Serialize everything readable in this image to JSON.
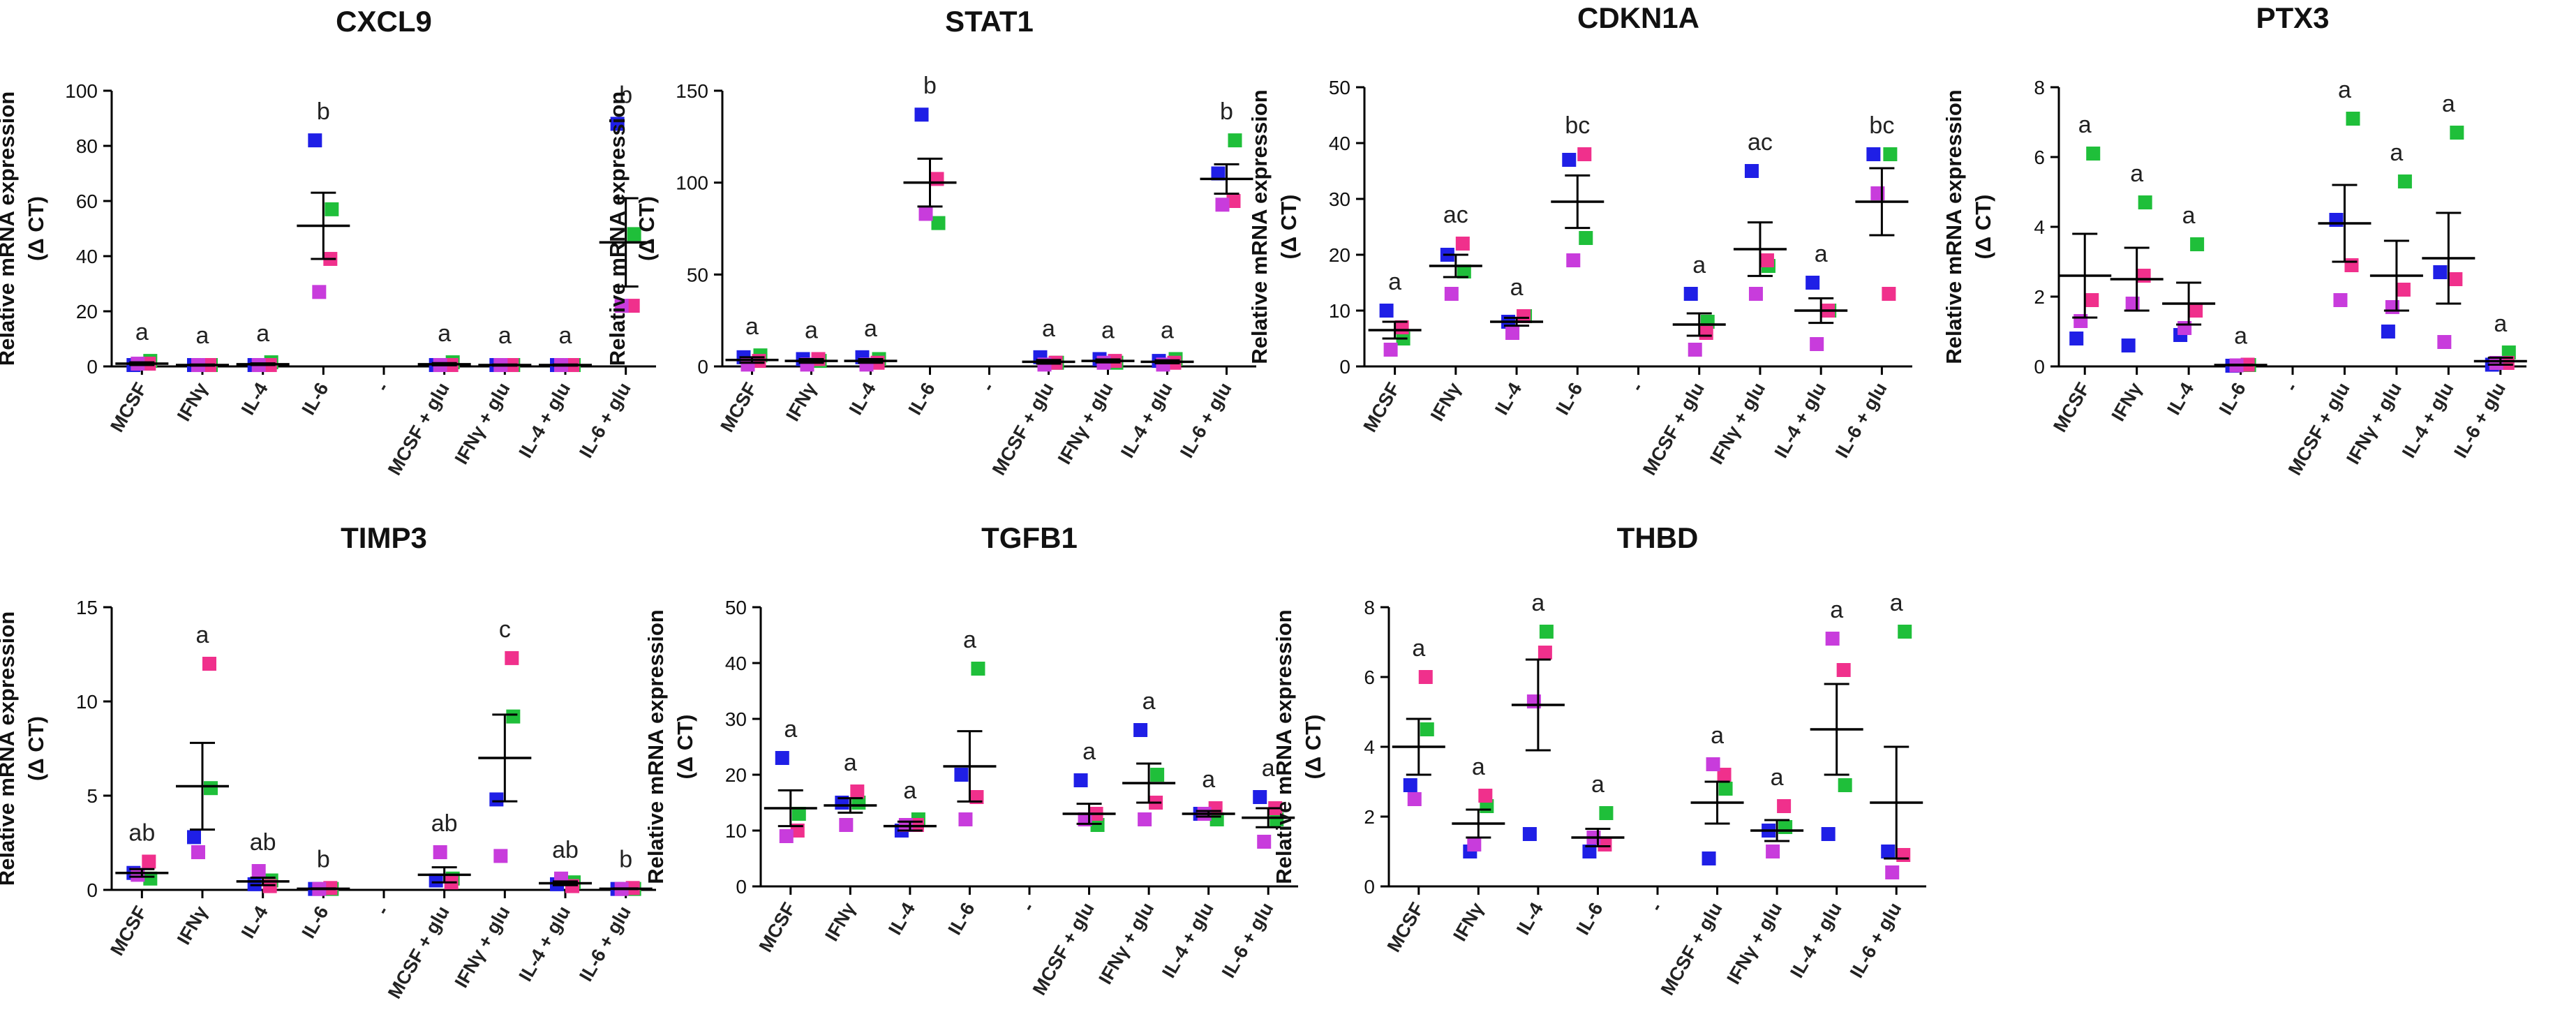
{
  "figure": {
    "colors": {
      "blue": "#1f1fe6",
      "green": "#1fbf3a",
      "pink": "#f0308c",
      "magenta": "#c83cdc",
      "axis": "#000000"
    },
    "ylabel": "Relative mRNA expression",
    "ylabel_sub": "(Δ CT)",
    "series_names": [
      "blue",
      "green",
      "pink",
      "magenta"
    ]
  },
  "chart_data": [
    {
      "type": "scatter",
      "title": "CXCL9",
      "categories": [
        "MCSF",
        "IFNγ",
        "IL-4",
        "IL-6",
        "-",
        "MCSF + glu",
        "IFNγ + glu",
        "IL-4 + glu",
        "IL-6 + glu"
      ],
      "ylim": [
        0,
        100
      ],
      "yticks": [
        0,
        20,
        40,
        60,
        80,
        100
      ],
      "points": [
        [
          0.5,
          2,
          1,
          1
        ],
        [
          0.5,
          0.5,
          0.5,
          0.5
        ],
        [
          0.5,
          1.5,
          0.5,
          0.5
        ],
        [
          82,
          57,
          39,
          27
        ],
        null,
        [
          0.5,
          1.5,
          0.5,
          0.5
        ],
        [
          0.5,
          0.5,
          0.5,
          0.5
        ],
        [
          0.5,
          0.5,
          0.5,
          0.5
        ],
        [
          88,
          48,
          22,
          22
        ]
      ],
      "mean": [
        1,
        0.5,
        0.8,
        51,
        null,
        0.8,
        0.5,
        0.5,
        45
      ],
      "sem": [
        0.5,
        0.2,
        0.3,
        12,
        null,
        0.4,
        0.2,
        0.2,
        16
      ],
      "letters": [
        "a",
        "a",
        "a",
        "b",
        "",
        "a",
        "a",
        "a",
        "b"
      ]
    },
    {
      "type": "scatter",
      "title": "STAT1",
      "categories": [
        "MCSF",
        "IFNγ",
        "IL-4",
        "IL-6",
        "-",
        "MCSF + glu",
        "IFNγ + glu",
        "IL-4 + glu",
        "IL-6 + glu"
      ],
      "ylim": [
        0,
        150
      ],
      "yticks": [
        0,
        50,
        100,
        150
      ],
      "points": [
        [
          5,
          6,
          3,
          1
        ],
        [
          4,
          3,
          4,
          1
        ],
        [
          5,
          4,
          2,
          1
        ],
        [
          137,
          78,
          102,
          83
        ],
        null,
        [
          5,
          2,
          2,
          1
        ],
        [
          4,
          2,
          3,
          2
        ],
        [
          3,
          4,
          2,
          1
        ],
        [
          105,
          123,
          90,
          88
        ]
      ],
      "mean": [
        3.5,
        3,
        3,
        100,
        null,
        2.5,
        3,
        2.5,
        102
      ],
      "sem": [
        1.5,
        1,
        1,
        13,
        null,
        1,
        0.8,
        0.8,
        8
      ],
      "letters": [
        "a",
        "a",
        "a",
        "b",
        "",
        "a",
        "a",
        "a",
        "b"
      ]
    },
    {
      "type": "scatter",
      "title": "CDKN1A",
      "categories": [
        "MCSF",
        "IFNγ",
        "IL-4",
        "IL-6",
        "-",
        "MCSF + glu",
        "IFNγ + glu",
        "IL-4 + glu",
        "IL-6 + glu"
      ],
      "ylim": [
        0,
        50
      ],
      "yticks": [
        0,
        10,
        20,
        30,
        40,
        50
      ],
      "points": [
        [
          10,
          5,
          7,
          3
        ],
        [
          20,
          17,
          22,
          13
        ],
        [
          8,
          9,
          9,
          6
        ],
        [
          37,
          23,
          38,
          19
        ],
        null,
        [
          13,
          8,
          6,
          3
        ],
        [
          35,
          18,
          19,
          13
        ],
        [
          15,
          10,
          10,
          4
        ],
        [
          38,
          38,
          13,
          31
        ]
      ],
      "mean": [
        6.5,
        null,
        8,
        29.5,
        null,
        7.5,
        21,
        10,
        29.5
      ],
      "sem": [
        1.5,
        2,
        0.7,
        4.7,
        null,
        2,
        4.8,
        2.2,
        6
      ],
      "mean_fix": [
        6.5,
        18,
        8,
        29.5,
        null,
        7.5,
        21,
        10,
        29.5
      ],
      "letters": [
        "a",
        "ac",
        "a",
        "bc",
        "",
        "a",
        "ac",
        "a",
        "bc"
      ]
    },
    {
      "type": "scatter",
      "title": "PTX3",
      "categories": [
        "MCSF",
        "IFNγ",
        "IL-4",
        "IL-6",
        "-",
        "MCSF + glu",
        "IFNγ + glu",
        "IL-4 + glu",
        "IL-6 + glu"
      ],
      "ylim": [
        0,
        8
      ],
      "yticks": [
        0,
        2,
        4,
        6,
        8
      ],
      "points": [
        [
          0.8,
          6.1,
          1.9,
          1.3
        ],
        [
          0.6,
          4.7,
          2.6,
          1.8
        ],
        [
          0.9,
          3.5,
          1.6,
          1.1
        ],
        [
          0.02,
          0.04,
          0.05,
          0.03
        ],
        null,
        [
          4.2,
          7.1,
          2.9,
          1.9
        ],
        [
          1.0,
          5.3,
          2.2,
          1.7
        ],
        [
          2.7,
          6.7,
          2.5,
          0.7
        ],
        [
          0.05,
          0.4,
          0.1,
          0.1
        ]
      ],
      "mean": [
        2.6,
        2.5,
        1.8,
        0.04,
        null,
        4.1,
        2.6,
        3.1,
        0.15
      ],
      "sem": [
        1.2,
        0.9,
        0.6,
        0.01,
        null,
        1.1,
        1.0,
        1.3,
        0.1
      ],
      "letters": [
        "a",
        "a",
        "a",
        "a",
        "",
        "a",
        "a",
        "a",
        "a"
      ]
    },
    {
      "type": "scatter",
      "title": "TIMP3",
      "categories": [
        "MCSF",
        "IFNγ",
        "IL-4",
        "IL-6",
        "-",
        "MCSF + glu",
        "IFNγ + glu",
        "IL-4 + glu",
        "IL-6 + glu"
      ],
      "ylim": [
        0,
        15
      ],
      "yticks": [
        0,
        5,
        10,
        15
      ],
      "points": [
        [
          0.9,
          0.6,
          1.5,
          0.8
        ],
        [
          2.8,
          5.4,
          12.0,
          2.0
        ],
        [
          0.3,
          0.5,
          0.2,
          1.0
        ],
        [
          0.05,
          0.05,
          0.1,
          0.05
        ],
        null,
        [
          0.5,
          0.6,
          0.4,
          2.0
        ],
        [
          4.8,
          9.2,
          12.3,
          1.8
        ],
        [
          0.3,
          0.4,
          0.2,
          0.6
        ],
        [
          0.05,
          0.05,
          0.1,
          0.05
        ]
      ],
      "mean": [
        0.9,
        5.5,
        0.45,
        0.06,
        null,
        0.8,
        7.0,
        0.35,
        0.06
      ],
      "sem": [
        0.2,
        2.3,
        0.2,
        0.02,
        null,
        0.4,
        2.3,
        0.1,
        0.02
      ],
      "letters": [
        "ab",
        "a",
        "ab",
        "b",
        "",
        "ab",
        "c",
        "ab",
        "b"
      ]
    },
    {
      "type": "scatter",
      "title": "TGFB1",
      "categories": [
        "MCSF",
        "IFNγ",
        "IL-4",
        "IL-6",
        "-",
        "MCSF + glu",
        "IFNγ + glu",
        "IL-4 + glu",
        "IL-6 + glu"
      ],
      "ylim": [
        0,
        50
      ],
      "yticks": [
        0,
        10,
        20,
        30,
        40,
        50
      ],
      "points": [
        [
          23,
          13,
          10,
          9
        ],
        [
          15,
          15,
          17,
          11
        ],
        [
          10,
          12,
          11,
          11
        ],
        [
          20,
          39,
          16,
          12
        ],
        null,
        [
          19,
          11,
          13,
          12
        ],
        [
          28,
          20,
          15,
          12
        ],
        [
          13,
          12,
          14,
          13
        ],
        [
          16,
          12,
          14,
          8
        ]
      ],
      "mean": [
        14,
        14.5,
        10.8,
        21.5,
        null,
        13,
        18.5,
        13,
        12.3
      ],
      "sem": [
        3.2,
        1.3,
        0.8,
        6.3,
        null,
        1.8,
        3.5,
        0.5,
        1.7
      ],
      "letters": [
        "a",
        "a",
        "a",
        "a",
        "",
        "a",
        "a",
        "a",
        "a"
      ]
    },
    {
      "type": "scatter",
      "title": "THBD",
      "categories": [
        "MCSF",
        "IFNγ",
        "IL-4",
        "IL-6",
        "-",
        "MCSF + glu",
        "IFNγ + glu",
        "IL-4 + glu",
        "IL-6 + glu"
      ],
      "ylim": [
        0,
        8
      ],
      "yticks": [
        0,
        2,
        4,
        6,
        8
      ],
      "points": [
        [
          2.9,
          4.5,
          6.0,
          2.5
        ],
        [
          1.0,
          2.3,
          2.6,
          1.2
        ],
        [
          1.5,
          7.3,
          6.7,
          5.3
        ],
        [
          1.0,
          2.1,
          1.2,
          1.4
        ],
        null,
        [
          0.8,
          2.8,
          3.2,
          3.5
        ],
        [
          1.6,
          1.7,
          2.3,
          1.0
        ],
        [
          1.5,
          2.9,
          6.2,
          7.1
        ],
        [
          1.0,
          7.3,
          0.9,
          0.4
        ]
      ],
      "mean": [
        4.0,
        1.8,
        5.2,
        1.4,
        null,
        2.4,
        1.6,
        4.5,
        2.4
      ],
      "sem": [
        0.8,
        0.4,
        1.3,
        0.25,
        null,
        0.6,
        0.3,
        1.3,
        1.6
      ],
      "letters": [
        "a",
        "a",
        "a",
        "a",
        "",
        "a",
        "a",
        "a",
        "a"
      ]
    }
  ]
}
